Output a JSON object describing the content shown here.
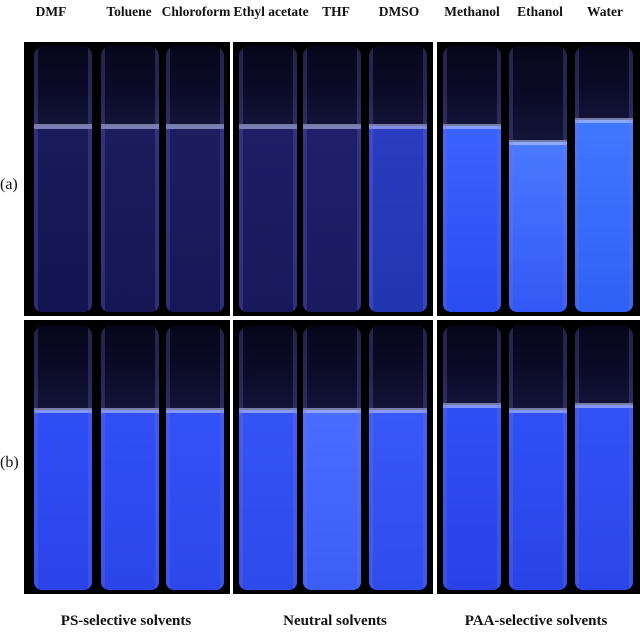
{
  "solvents": [
    "DMF",
    "Toluene",
    "Chloroform",
    "Ethyl acetate",
    "THF",
    "DMSO",
    "Methanol",
    "Ethanol",
    "Water"
  ],
  "row_labels": [
    "(a)",
    "(b)"
  ],
  "groups": [
    "PS-selective solvents",
    "Neutral solvents",
    "PAA-selective solvents"
  ],
  "colors": {
    "background": "#000000",
    "liquid_dark": "#1a1a6e",
    "liquid_bright": "#2a4cff",
    "liquid_glow": "#3b74ff"
  }
}
